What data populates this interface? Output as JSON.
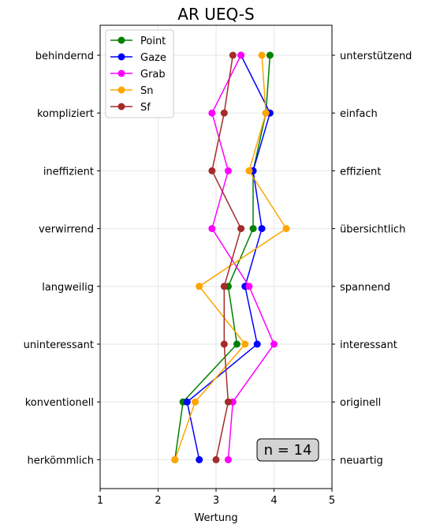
{
  "chart_data": {
    "type": "line",
    "title": "AR UEQ-S",
    "xlabel": "Wertung",
    "xlim": [
      1,
      5
    ],
    "xticks": [
      1,
      2,
      3,
      4,
      5
    ],
    "grid": true,
    "legend_position": "top-left",
    "annotation": "n = 14",
    "left_labels": [
      "behindernd",
      "kompliziert",
      "ineffizient",
      "verwirrend",
      "langweilig",
      "uninteressant",
      "konventionell",
      "herkömmlich"
    ],
    "right_labels": [
      "unterstützend",
      "einfach",
      "effizient",
      "übersichtlich",
      "spannend",
      "interessant",
      "originell",
      "neuartig"
    ],
    "series": [
      {
        "name": "Point",
        "color": "#008000",
        "values": [
          3.93,
          3.86,
          3.64,
          3.64,
          3.21,
          3.36,
          2.43,
          2.29
        ]
      },
      {
        "name": "Gaze",
        "color": "#0000ff",
        "values": [
          3.43,
          3.93,
          3.64,
          3.79,
          3.5,
          3.71,
          2.5,
          2.71
        ]
      },
      {
        "name": "Grab",
        "color": "#ff00ff",
        "values": [
          3.43,
          2.93,
          3.21,
          2.93,
          3.57,
          4.0,
          3.29,
          3.21
        ]
      },
      {
        "name": "Sn",
        "color": "#ffa500",
        "values": [
          3.79,
          3.86,
          3.57,
          4.21,
          2.71,
          3.5,
          2.64,
          2.29
        ]
      },
      {
        "name": "Sf",
        "color": "#a52a2a",
        "values": [
          3.29,
          3.14,
          2.93,
          3.43,
          3.14,
          3.14,
          3.21,
          3.0
        ]
      }
    ]
  }
}
